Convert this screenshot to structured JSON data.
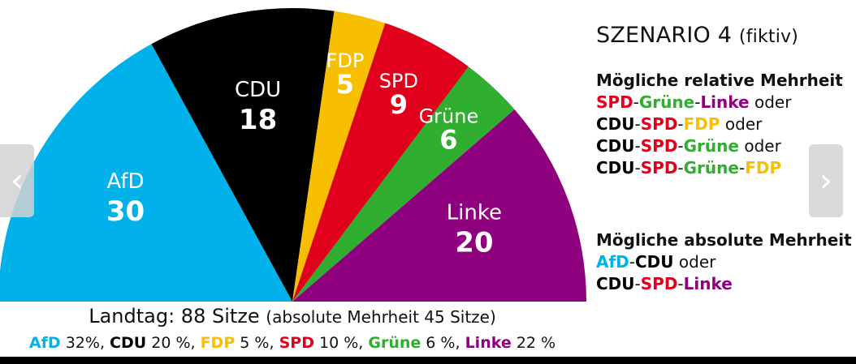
{
  "chart_data": {
    "type": "pie",
    "subtype": "semicircle-parliament",
    "total_seats": 88,
    "parties": [
      {
        "name": "AfD",
        "seats": 30,
        "color": "#00b1ea",
        "percent": "32%"
      },
      {
        "name": "CDU",
        "seats": 18,
        "color": "#000000",
        "percent": "20 %"
      },
      {
        "name": "FDP",
        "seats": 5,
        "color": "#f7bf00",
        "percent": "5 %"
      },
      {
        "name": "SPD",
        "seats": 9,
        "color": "#e0001b",
        "percent": "10 %"
      },
      {
        "name": "Grüne",
        "seats": 6,
        "color": "#2fae2f",
        "percent": "6 %"
      },
      {
        "name": "Linke",
        "seats": 20,
        "color": "#8e007e",
        "percent": "22 %"
      }
    ],
    "title": "SZENARIO 4",
    "title_note": "(fiktiv)"
  },
  "footer": {
    "landtag": "Landtag: 88 Sitze",
    "majority": "(absolute Mehrheit 45 Sitze)"
  },
  "legend": {
    "relative_heading": "Mögliche relative Mehrheit",
    "absolute_heading": "Mögliche absolute Mehrheit",
    "connector": "oder",
    "relative": [
      [
        "SPD",
        "Grüne",
        "Linke"
      ],
      [
        "CDU",
        "SPD",
        "FDP"
      ],
      [
        "CDU",
        "SPD",
        "Grüne"
      ],
      [
        "CDU",
        "SPD",
        "Grüne",
        "FDP"
      ]
    ],
    "absolute": [
      [
        "AfD",
        "CDU"
      ],
      [
        "CDU",
        "SPD",
        "Linke"
      ]
    ]
  },
  "nav": {
    "prev_icon": "chevron-left-icon",
    "next_icon": "chevron-right-icon",
    "prev_glyph": "‹",
    "next_glyph": "›"
  }
}
